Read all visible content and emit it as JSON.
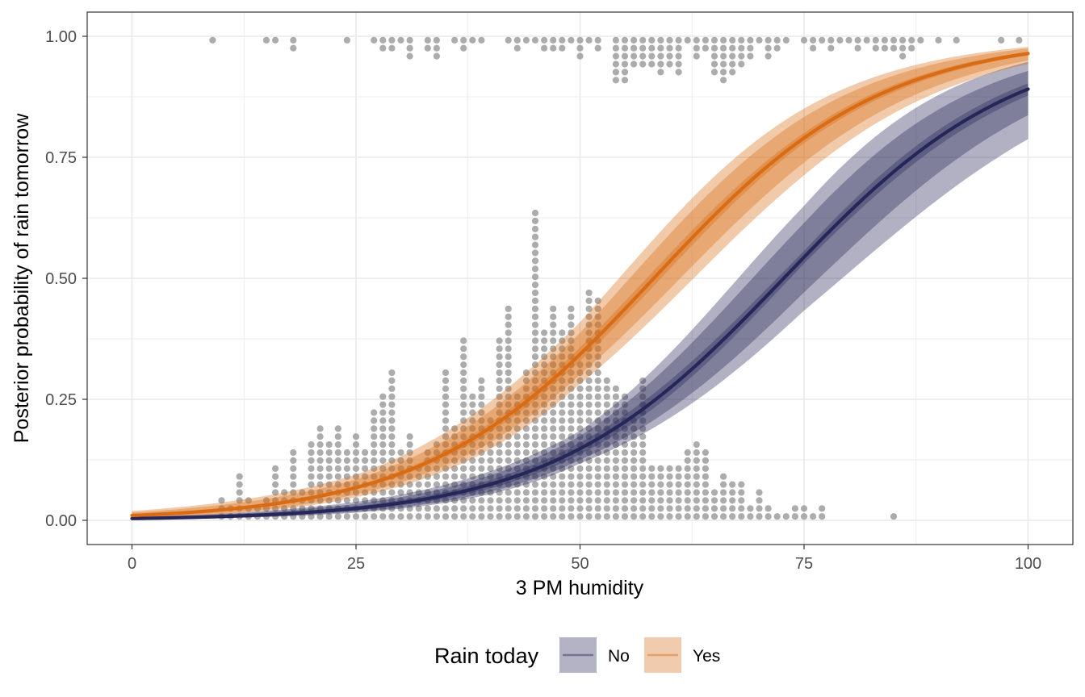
{
  "chart_data": {
    "type": "line",
    "xlabel": "3 PM humidity",
    "ylabel": "Posterior probability of rain tomorrow",
    "xlim": [
      -5,
      105
    ],
    "ylim": [
      -0.05,
      1.05
    ],
    "x_ticks": [
      0,
      25,
      50,
      75,
      100
    ],
    "x_tick_labels": [
      "0",
      "25",
      "50",
      "75",
      "100"
    ],
    "y_ticks": [
      0,
      0.25,
      0.5,
      0.75,
      1.0
    ],
    "y_tick_labels": [
      "0.00",
      "0.25",
      "0.50",
      "0.75",
      "1.00"
    ],
    "grid": true,
    "legend": {
      "title": "Rain today",
      "position": "bottom",
      "entries": [
        "No",
        "Yes"
      ]
    },
    "colors": {
      "no": "#262658",
      "yes": "#d86b13",
      "dots": "#9e9e9e",
      "grid": "#ebebeb",
      "panel_border": "#333333"
    },
    "series": [
      {
        "name": "No",
        "curve": {
          "intercept": -5.6,
          "slope": 0.077
        },
        "x": [
          0,
          10,
          20,
          30,
          40,
          50,
          60,
          70,
          80,
          90,
          100
        ],
        "median": [
          0.004,
          0.008,
          0.017,
          0.036,
          0.075,
          0.148,
          0.274,
          0.453,
          0.642,
          0.794,
          0.887
        ],
        "bands": [
          {
            "level": 0.5,
            "x": [
              0,
              25,
              50,
              75,
              100
            ],
            "lower": [
              0.003,
              0.02,
              0.136,
              0.536,
              0.872
            ],
            "upper": [
              0.005,
              0.028,
              0.16,
              0.562,
              0.898
            ]
          },
          {
            "level": 0.8,
            "x": [
              0,
              25,
              50,
              75,
              100
            ],
            "lower": [
              0.002,
              0.017,
              0.124,
              0.476,
              0.83
            ],
            "upper": [
              0.006,
              0.032,
              0.173,
              0.619,
              0.925
            ]
          },
          {
            "level": 0.95,
            "x": [
              0,
              25,
              50,
              75,
              100
            ],
            "lower": [
              0.002,
              0.015,
              0.116,
              0.44,
              0.78
            ],
            "upper": [
              0.008,
              0.036,
              0.183,
              0.656,
              0.945
            ]
          }
        ]
      },
      {
        "name": "Yes",
        "curve": {
          "intercept": -4.6,
          "slope": 0.079
        },
        "x": [
          0,
          10,
          20,
          30,
          40,
          50,
          60,
          70,
          80,
          90,
          100
        ],
        "median": [
          0.01,
          0.022,
          0.045,
          0.095,
          0.188,
          0.332,
          0.517,
          0.694,
          0.831,
          0.913,
          0.959
        ],
        "bands": [
          {
            "level": 0.5,
            "x": [
              0,
              25,
              50,
              75,
              100
            ],
            "lower": [
              0.008,
              0.06,
              0.318,
              0.756,
              0.955
            ],
            "upper": [
              0.012,
              0.068,
              0.346,
              0.779,
              0.963
            ]
          },
          {
            "level": 0.8,
            "x": [
              0,
              25,
              50,
              75,
              100
            ],
            "lower": [
              0.006,
              0.051,
              0.29,
              0.71,
              0.943
            ],
            "upper": [
              0.016,
              0.08,
              0.375,
              0.812,
              0.971
            ]
          },
          {
            "level": 0.95,
            "x": [
              0,
              25,
              50,
              75,
              100
            ],
            "lower": [
              0.005,
              0.045,
              0.27,
              0.68,
              0.935
            ],
            "upper": [
              0.019,
              0.089,
              0.395,
              0.83,
              0.975
            ]
          }
        ]
      }
    ],
    "dot_stacks": {
      "dot_step": 0.0165,
      "bottom": [
        {
          "x": 10,
          "n": 3
        },
        {
          "x": 11,
          "n": 2
        },
        {
          "x": 12,
          "n": 6
        },
        {
          "x": 13,
          "n": 3
        },
        {
          "x": 14,
          "n": 2
        },
        {
          "x": 15,
          "n": 3
        },
        {
          "x": 16,
          "n": 7
        },
        {
          "x": 17,
          "n": 4
        },
        {
          "x": 18,
          "n": 9
        },
        {
          "x": 19,
          "n": 4
        },
        {
          "x": 20,
          "n": 10
        },
        {
          "x": 21,
          "n": 12
        },
        {
          "x": 22,
          "n": 10
        },
        {
          "x": 23,
          "n": 12
        },
        {
          "x": 24,
          "n": 9
        },
        {
          "x": 25,
          "n": 11
        },
        {
          "x": 26,
          "n": 9
        },
        {
          "x": 27,
          "n": 14
        },
        {
          "x": 28,
          "n": 16
        },
        {
          "x": 29,
          "n": 19
        },
        {
          "x": 30,
          "n": 9
        },
        {
          "x": 31,
          "n": 11
        },
        {
          "x": 32,
          "n": 7
        },
        {
          "x": 33,
          "n": 9
        },
        {
          "x": 34,
          "n": 10
        },
        {
          "x": 35,
          "n": 19
        },
        {
          "x": 36,
          "n": 12
        },
        {
          "x": 37,
          "n": 23
        },
        {
          "x": 38,
          "n": 16
        },
        {
          "x": 39,
          "n": 18
        },
        {
          "x": 40,
          "n": 13
        },
        {
          "x": 41,
          "n": 23
        },
        {
          "x": 42,
          "n": 27
        },
        {
          "x": 43,
          "n": 16
        },
        {
          "x": 44,
          "n": 19
        },
        {
          "x": 45,
          "n": 39
        },
        {
          "x": 46,
          "n": 24
        },
        {
          "x": 47,
          "n": 27
        },
        {
          "x": 48,
          "n": 24
        },
        {
          "x": 49,
          "n": 27
        },
        {
          "x": 50,
          "n": 20
        },
        {
          "x": 51,
          "n": 29
        },
        {
          "x": 52,
          "n": 28
        },
        {
          "x": 53,
          "n": 18
        },
        {
          "x": 54,
          "n": 17
        },
        {
          "x": 55,
          "n": 16
        },
        {
          "x": 56,
          "n": 13
        },
        {
          "x": 57,
          "n": 18
        },
        {
          "x": 58,
          "n": 7
        },
        {
          "x": 59,
          "n": 7
        },
        {
          "x": 60,
          "n": 7
        },
        {
          "x": 61,
          "n": 7
        },
        {
          "x": 62,
          "n": 9
        },
        {
          "x": 63,
          "n": 10
        },
        {
          "x": 64,
          "n": 9
        },
        {
          "x": 65,
          "n": 4
        },
        {
          "x": 66,
          "n": 6
        },
        {
          "x": 67,
          "n": 5
        },
        {
          "x": 68,
          "n": 5
        },
        {
          "x": 69,
          "n": 2
        },
        {
          "x": 70,
          "n": 4
        },
        {
          "x": 71,
          "n": 2
        },
        {
          "x": 72,
          "n": 1
        },
        {
          "x": 73,
          "n": 1
        },
        {
          "x": 74,
          "n": 2
        },
        {
          "x": 75,
          "n": 2
        },
        {
          "x": 76,
          "n": 1
        },
        {
          "x": 77,
          "n": 2
        },
        {
          "x": 85,
          "n": 1
        }
      ],
      "top": [
        {
          "x": 9,
          "n": 1
        },
        {
          "x": 15,
          "n": 1
        },
        {
          "x": 16,
          "n": 1
        },
        {
          "x": 18,
          "n": 2
        },
        {
          "x": 24,
          "n": 1
        },
        {
          "x": 27,
          "n": 1
        },
        {
          "x": 28,
          "n": 2
        },
        {
          "x": 29,
          "n": 2
        },
        {
          "x": 30,
          "n": 1
        },
        {
          "x": 31,
          "n": 3
        },
        {
          "x": 33,
          "n": 2
        },
        {
          "x": 34,
          "n": 3
        },
        {
          "x": 36,
          "n": 1
        },
        {
          "x": 37,
          "n": 2
        },
        {
          "x": 38,
          "n": 1
        },
        {
          "x": 39,
          "n": 1
        },
        {
          "x": 42,
          "n": 1
        },
        {
          "x": 43,
          "n": 2
        },
        {
          "x": 44,
          "n": 1
        },
        {
          "x": 45,
          "n": 1
        },
        {
          "x": 46,
          "n": 2
        },
        {
          "x": 47,
          "n": 2
        },
        {
          "x": 48,
          "n": 2
        },
        {
          "x": 49,
          "n": 1
        },
        {
          "x": 50,
          "n": 3
        },
        {
          "x": 51,
          "n": 1
        },
        {
          "x": 52,
          "n": 2
        },
        {
          "x": 54,
          "n": 6
        },
        {
          "x": 55,
          "n": 6
        },
        {
          "x": 56,
          "n": 4
        },
        {
          "x": 57,
          "n": 4
        },
        {
          "x": 58,
          "n": 4
        },
        {
          "x": 59,
          "n": 5
        },
        {
          "x": 60,
          "n": 4
        },
        {
          "x": 61,
          "n": 5
        },
        {
          "x": 62,
          "n": 1
        },
        {
          "x": 63,
          "n": 3
        },
        {
          "x": 64,
          "n": 2
        },
        {
          "x": 65,
          "n": 5
        },
        {
          "x": 66,
          "n": 6
        },
        {
          "x": 67,
          "n": 5
        },
        {
          "x": 68,
          "n": 4
        },
        {
          "x": 69,
          "n": 3
        },
        {
          "x": 70,
          "n": 1
        },
        {
          "x": 71,
          "n": 3
        },
        {
          "x": 72,
          "n": 2
        },
        {
          "x": 73,
          "n": 1
        },
        {
          "x": 75,
          "n": 1
        },
        {
          "x": 76,
          "n": 2
        },
        {
          "x": 77,
          "n": 1
        },
        {
          "x": 78,
          "n": 2
        },
        {
          "x": 79,
          "n": 1
        },
        {
          "x": 80,
          "n": 1
        },
        {
          "x": 81,
          "n": 2
        },
        {
          "x": 82,
          "n": 1
        },
        {
          "x": 83,
          "n": 2
        },
        {
          "x": 84,
          "n": 2
        },
        {
          "x": 85,
          "n": 2
        },
        {
          "x": 86,
          "n": 3
        },
        {
          "x": 87,
          "n": 2
        },
        {
          "x": 88,
          "n": 1
        },
        {
          "x": 90,
          "n": 1
        },
        {
          "x": 92,
          "n": 1
        },
        {
          "x": 97,
          "n": 1
        },
        {
          "x": 99,
          "n": 1
        }
      ]
    }
  }
}
